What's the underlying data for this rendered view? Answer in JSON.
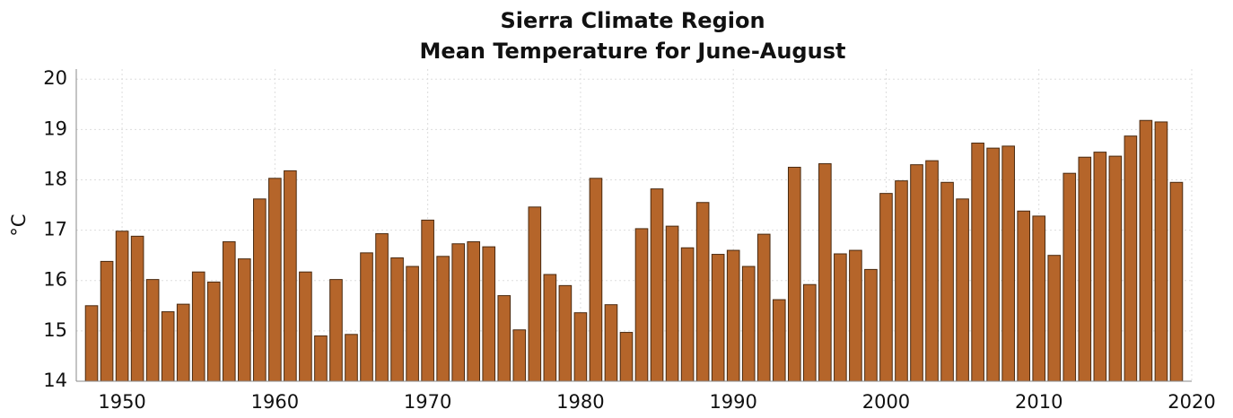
{
  "chart_data": {
    "type": "bar",
    "title": [
      "Sierra Climate Region",
      "Mean Temperature for June-August"
    ],
    "y_label": "°C",
    "x": [
      1948,
      1949,
      1950,
      1951,
      1952,
      1953,
      1954,
      1955,
      1956,
      1957,
      1958,
      1959,
      1960,
      1961,
      1962,
      1963,
      1964,
      1965,
      1966,
      1967,
      1968,
      1969,
      1970,
      1971,
      1972,
      1973,
      1974,
      1975,
      1976,
      1977,
      1978,
      1979,
      1980,
      1981,
      1982,
      1983,
      1984,
      1985,
      1986,
      1987,
      1988,
      1989,
      1990,
      1991,
      1992,
      1993,
      1994,
      1995,
      1996,
      1997,
      1998,
      1999,
      2000,
      2001,
      2002,
      2003,
      2004,
      2005,
      2006,
      2007,
      2008,
      2009,
      2010,
      2011,
      2012,
      2013,
      2014,
      2015,
      2016,
      2017,
      2018,
      2019
    ],
    "values": [
      15.5,
      16.38,
      16.98,
      16.88,
      16.02,
      15.38,
      15.53,
      16.17,
      15.97,
      16.77,
      16.43,
      17.62,
      18.03,
      18.18,
      16.17,
      14.9,
      16.02,
      14.93,
      16.55,
      16.93,
      16.45,
      16.28,
      17.2,
      16.48,
      16.73,
      16.77,
      16.67,
      15.7,
      15.02,
      17.46,
      16.12,
      15.9,
      15.36,
      18.03,
      15.52,
      14.97,
      17.03,
      17.82,
      17.08,
      16.65,
      17.55,
      16.52,
      16.6,
      16.28,
      16.92,
      15.62,
      18.25,
      15.92,
      18.32,
      16.53,
      16.6,
      16.22,
      17.73,
      17.98,
      18.3,
      18.38,
      17.95,
      17.62,
      18.73,
      18.63,
      18.67,
      17.38,
      17.28,
      16.5,
      18.13,
      18.45,
      18.55,
      18.47,
      18.87,
      19.18,
      19.15,
      17.95
    ],
    "color": "#b5652a",
    "xlim": [
      1947,
      2020
    ],
    "xticks": [
      1950,
      1960,
      1970,
      1980,
      1990,
      2000,
      2010,
      2020
    ],
    "ylim": [
      14,
      20.2
    ],
    "yticks": [
      14,
      15,
      16,
      17,
      18,
      19,
      20
    ],
    "grid": true
  }
}
